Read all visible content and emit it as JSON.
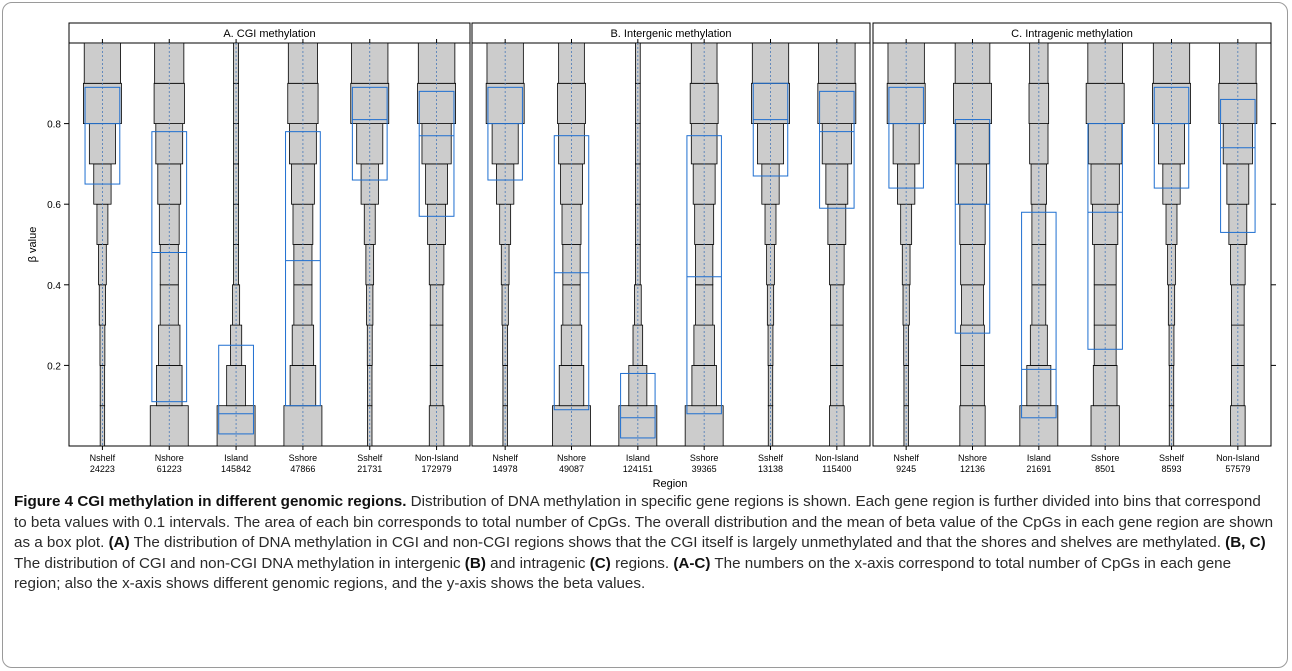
{
  "chart_data": [
    {
      "type": "box",
      "title": "A. CGI methylation",
      "ylabel": "β value",
      "ylim": [
        0,
        1
      ],
      "yticks": [
        0.2,
        0.4,
        0.6,
        0.8
      ],
      "categories": [
        "Nshelf",
        "Nshore",
        "Island",
        "Sshore",
        "Sshelf",
        "Non-Island"
      ],
      "counts": [
        "24223",
        "61223",
        "145842",
        "47866",
        "21731",
        "172979"
      ],
      "boxes": [
        {
          "q1": 0.65,
          "median": 0.8,
          "q3": 0.89
        },
        {
          "q1": 0.11,
          "median": 0.48,
          "q3": 0.78
        },
        {
          "q1": 0.03,
          "median": 0.08,
          "q3": 0.25
        },
        {
          "q1": 0.1,
          "median": 0.46,
          "q3": 0.78
        },
        {
          "q1": 0.66,
          "median": 0.81,
          "q3": 0.89
        },
        {
          "q1": 0.57,
          "median": 0.77,
          "q3": 0.88
        }
      ],
      "bin_distribution": [
        [
          0.005,
          0.005,
          0.006,
          0.01,
          0.015,
          0.03,
          0.075,
          0.17,
          0.36,
          0.33
        ],
        [
          0.22,
          0.1,
          0.07,
          0.05,
          0.05,
          0.06,
          0.08,
          0.11,
          0.14,
          0.13
        ],
        [
          0.57,
          0.14,
          0.05,
          0.02,
          0.01,
          0.01,
          0.01,
          0.01,
          0.01,
          0.01
        ],
        [
          0.22,
          0.1,
          0.07,
          0.05,
          0.05,
          0.06,
          0.08,
          0.11,
          0.14,
          0.13
        ],
        [
          0.005,
          0.005,
          0.006,
          0.01,
          0.015,
          0.03,
          0.075,
          0.17,
          0.36,
          0.33
        ],
        [
          0.04,
          0.03,
          0.03,
          0.03,
          0.04,
          0.06,
          0.09,
          0.16,
          0.27,
          0.25
        ]
      ]
    },
    {
      "type": "box",
      "title": "B. Intergenic methylation",
      "ylim": [
        0,
        1
      ],
      "categories": [
        "Nshelf",
        "Nshore",
        "Island",
        "Sshore",
        "Sshelf",
        "Non-Island"
      ],
      "counts": [
        "14978",
        "49087",
        "124151",
        "39365",
        "13138",
        "115400"
      ],
      "boxes": [
        {
          "q1": 0.66,
          "median": 0.8,
          "q3": 0.89
        },
        {
          "q1": 0.09,
          "median": 0.43,
          "q3": 0.77
        },
        {
          "q1": 0.02,
          "median": 0.07,
          "q3": 0.18
        },
        {
          "q1": 0.08,
          "median": 0.42,
          "q3": 0.77
        },
        {
          "q1": 0.67,
          "median": 0.81,
          "q3": 0.9
        },
        {
          "q1": 0.59,
          "median": 0.78,
          "q3": 0.88
        }
      ],
      "bin_distribution": [
        [
          0.005,
          0.005,
          0.006,
          0.01,
          0.015,
          0.03,
          0.075,
          0.17,
          0.36,
          0.33
        ],
        [
          0.24,
          0.1,
          0.07,
          0.05,
          0.05,
          0.06,
          0.08,
          0.11,
          0.13,
          0.11
        ],
        [
          0.62,
          0.14,
          0.04,
          0.02,
          0.01,
          0.01,
          0.01,
          0.01,
          0.01,
          0.01
        ],
        [
          0.24,
          0.1,
          0.07,
          0.05,
          0.05,
          0.06,
          0.08,
          0.11,
          0.13,
          0.11
        ],
        [
          0.005,
          0.005,
          0.006,
          0.01,
          0.015,
          0.03,
          0.075,
          0.17,
          0.36,
          0.33
        ],
        [
          0.04,
          0.03,
          0.03,
          0.03,
          0.04,
          0.06,
          0.09,
          0.16,
          0.27,
          0.25
        ]
      ]
    },
    {
      "type": "box",
      "title": "C. Intragenic methylation",
      "ylim": [
        0,
        1
      ],
      "categories": [
        "Nshelf",
        "Nshore",
        "Island",
        "Sshore",
        "Sshelf",
        "Non-Island"
      ],
      "counts": [
        "9245",
        "12136",
        "21691",
        "8501",
        "8593",
        "57579"
      ],
      "boxes": [
        {
          "q1": 0.64,
          "median": 0.8,
          "q3": 0.89
        },
        {
          "q1": 0.28,
          "median": 0.6,
          "q3": 0.81
        },
        {
          "q1": 0.07,
          "median": 0.19,
          "q3": 0.58
        },
        {
          "q1": 0.24,
          "median": 0.58,
          "q3": 0.8
        },
        {
          "q1": 0.64,
          "median": 0.8,
          "q3": 0.89
        },
        {
          "q1": 0.53,
          "median": 0.74,
          "q3": 0.86
        }
      ],
      "bin_distribution": [
        [
          0.005,
          0.005,
          0.006,
          0.01,
          0.015,
          0.03,
          0.075,
          0.17,
          0.36,
          0.33
        ],
        [
          0.08,
          0.07,
          0.07,
          0.06,
          0.07,
          0.08,
          0.1,
          0.14,
          0.18,
          0.15
        ],
        [
          0.3,
          0.12,
          0.06,
          0.04,
          0.04,
          0.04,
          0.05,
          0.07,
          0.08,
          0.07
        ],
        [
          0.1,
          0.07,
          0.06,
          0.06,
          0.06,
          0.08,
          0.1,
          0.14,
          0.18,
          0.15
        ],
        [
          0.005,
          0.005,
          0.006,
          0.01,
          0.015,
          0.03,
          0.075,
          0.17,
          0.36,
          0.33
        ],
        [
          0.04,
          0.03,
          0.03,
          0.03,
          0.04,
          0.06,
          0.09,
          0.16,
          0.27,
          0.25
        ]
      ]
    }
  ],
  "xlabel": "Region",
  "colors": {
    "box": "#1f6fd0",
    "bin_fill": "#cccccc",
    "bin_stroke": "#000000",
    "median_dash": "#4a7ab8"
  },
  "caption": {
    "label": "Figure 4",
    "title": "CGI methylation in different genomic regions.",
    "s1": " Distribution of DNA methylation in specific gene regions is shown. Each gene region is further divided into bins that correspond to beta values with 0.1 intervals. The area of each bin corresponds to total number of CpGs. The overall distribution and the mean of beta value of the CpGs in each gene region are shown as a box plot. ",
    "ref_a": "(A)",
    "s2": " The distribution of DNA methylation in CGI and non-CGI regions shows that the CGI itself is largely unmethylated and that the shores and shelves are methylated. ",
    "ref_bc": "(B, C)",
    "s3": " The distribution of CGI and non-CGI DNA methylation in intergenic ",
    "ref_b": "(B)",
    "s4": " and intragenic ",
    "ref_c": "(C)",
    "s5": " regions. ",
    "ref_ac": "(A-C)",
    "s6": " The numbers on the x-axis correspond to total number of CpGs in each gene region; also the x-axis shows different genomic regions, and the y-axis shows the beta values."
  }
}
